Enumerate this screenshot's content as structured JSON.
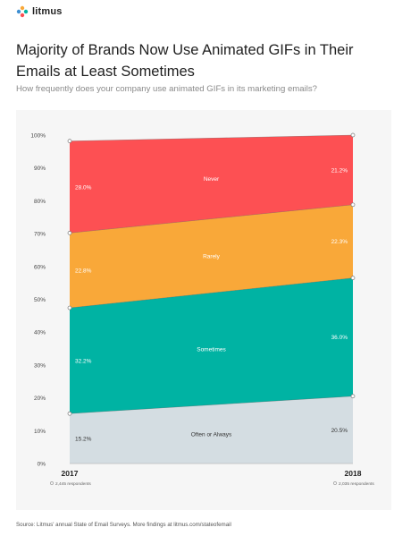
{
  "brand": {
    "name": "litmus"
  },
  "header": {
    "title": "Majority of Brands Now Use Animated GIFs in Their Emails at Least Sometimes",
    "subtitle": "How frequently does your company use animated GIFs in its marketing emails?"
  },
  "chart_data": {
    "type": "area",
    "stacked": true,
    "x": [
      "2017",
      "2018"
    ],
    "respondents": [
      "2,445 respondents",
      "2,035 respondents"
    ],
    "yticks": [
      "0%",
      "10%",
      "20%",
      "30%",
      "40%",
      "50%",
      "60%",
      "70%",
      "80%",
      "90%",
      "100%"
    ],
    "ylim": [
      0,
      100
    ],
    "series": [
      {
        "name": "Often or Always",
        "values": [
          15.2,
          20.5
        ],
        "labels": [
          "15.2%",
          "20.5%"
        ],
        "color": "#d4dde2"
      },
      {
        "name": "Sometimes",
        "values": [
          32.2,
          36.0
        ],
        "labels": [
          "32.2%",
          "36.0%"
        ],
        "color": "#00b3a3"
      },
      {
        "name": "Rarely",
        "values": [
          22.8,
          22.3
        ],
        "labels": [
          "22.8%",
          "22.3%"
        ],
        "color": "#f9a839"
      },
      {
        "name": "Never",
        "values": [
          28.0,
          21.2
        ],
        "labels": [
          "28.0%",
          "21.2%"
        ],
        "color": "#fd5053"
      }
    ]
  },
  "source": "Source: Litmus' annual State of Email Surveys. More findings at litmus.com/stateofemail"
}
